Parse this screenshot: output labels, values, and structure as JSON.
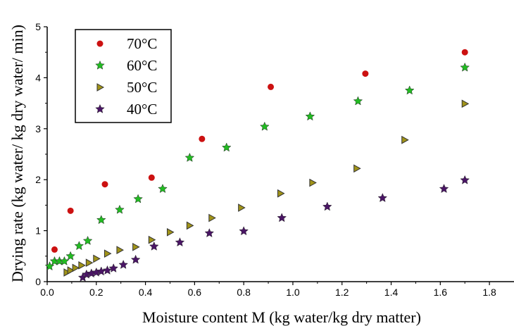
{
  "chart_data": {
    "type": "scatter",
    "title": "",
    "xlabel": "Moisture content M (kg water/kg dry matter)",
    "ylabel": "Drying rate (kg water/ kg dry water/ min)",
    "xlim": [
      0,
      1.9
    ],
    "ylim": [
      0,
      5
    ],
    "xticks": [
      0,
      0.2,
      0.4,
      0.6,
      0.8,
      1.0,
      1.2,
      1.4,
      1.6,
      1.8
    ],
    "xtick_labels": [
      "0.0",
      "0.2",
      "0.4",
      "0.6",
      "0.8",
      "1.0",
      "1.2",
      "1.4",
      "1.6",
      "1.8"
    ],
    "yticks": [
      0,
      1,
      2,
      3,
      4,
      5
    ],
    "ytick_labels": [
      "0",
      "1",
      "2",
      "3",
      "4",
      "5"
    ],
    "grid": false,
    "legend_position": "top-left",
    "series": [
      {
        "name": "70°C",
        "marker": "circle",
        "color": "#cc1111",
        "points": [
          [
            0.03,
            0.63
          ],
          [
            0.095,
            1.39
          ],
          [
            0.235,
            1.91
          ],
          [
            0.425,
            2.04
          ],
          [
            0.63,
            2.8
          ],
          [
            0.91,
            3.82
          ],
          [
            1.295,
            4.08
          ],
          [
            1.7,
            4.5
          ]
        ]
      },
      {
        "name": "60°C",
        "marker": "star",
        "color": "#22bb22",
        "points": [
          [
            0.01,
            0.3
          ],
          [
            0.03,
            0.4
          ],
          [
            0.05,
            0.4
          ],
          [
            0.07,
            0.4
          ],
          [
            0.095,
            0.5
          ],
          [
            0.13,
            0.7
          ],
          [
            0.165,
            0.8
          ],
          [
            0.22,
            1.21
          ],
          [
            0.295,
            1.41
          ],
          [
            0.37,
            1.62
          ],
          [
            0.47,
            1.82
          ],
          [
            0.58,
            2.43
          ],
          [
            0.73,
            2.63
          ],
          [
            0.885,
            3.04
          ],
          [
            1.07,
            3.24
          ],
          [
            1.265,
            3.54
          ],
          [
            1.475,
            3.75
          ],
          [
            1.7,
            4.2
          ]
        ]
      },
      {
        "name": "50°C",
        "marker": "triangle-right",
        "color": "#a09318",
        "points": [
          [
            0.08,
            0.18
          ],
          [
            0.095,
            0.22
          ],
          [
            0.115,
            0.27
          ],
          [
            0.14,
            0.32
          ],
          [
            0.17,
            0.37
          ],
          [
            0.2,
            0.45
          ],
          [
            0.245,
            0.55
          ],
          [
            0.295,
            0.62
          ],
          [
            0.36,
            0.68
          ],
          [
            0.425,
            0.82
          ],
          [
            0.5,
            0.97
          ],
          [
            0.58,
            1.1
          ],
          [
            0.67,
            1.25
          ],
          [
            0.79,
            1.45
          ],
          [
            0.95,
            1.73
          ],
          [
            1.08,
            1.94
          ],
          [
            1.26,
            2.22
          ],
          [
            1.455,
            2.78
          ],
          [
            1.7,
            3.49
          ]
        ]
      },
      {
        "name": "40°C",
        "marker": "star",
        "color": "#4a1565",
        "points": [
          [
            0.145,
            0.08
          ],
          [
            0.16,
            0.14
          ],
          [
            0.18,
            0.16
          ],
          [
            0.2,
            0.18
          ],
          [
            0.22,
            0.2
          ],
          [
            0.245,
            0.22
          ],
          [
            0.27,
            0.26
          ],
          [
            0.31,
            0.33
          ],
          [
            0.36,
            0.43
          ],
          [
            0.435,
            0.69
          ],
          [
            0.54,
            0.77
          ],
          [
            0.66,
            0.95
          ],
          [
            0.8,
            0.99
          ],
          [
            0.955,
            1.25
          ],
          [
            1.14,
            1.47
          ],
          [
            1.365,
            1.64
          ],
          [
            1.615,
            1.82
          ],
          [
            1.7,
            1.99
          ]
        ]
      }
    ]
  }
}
